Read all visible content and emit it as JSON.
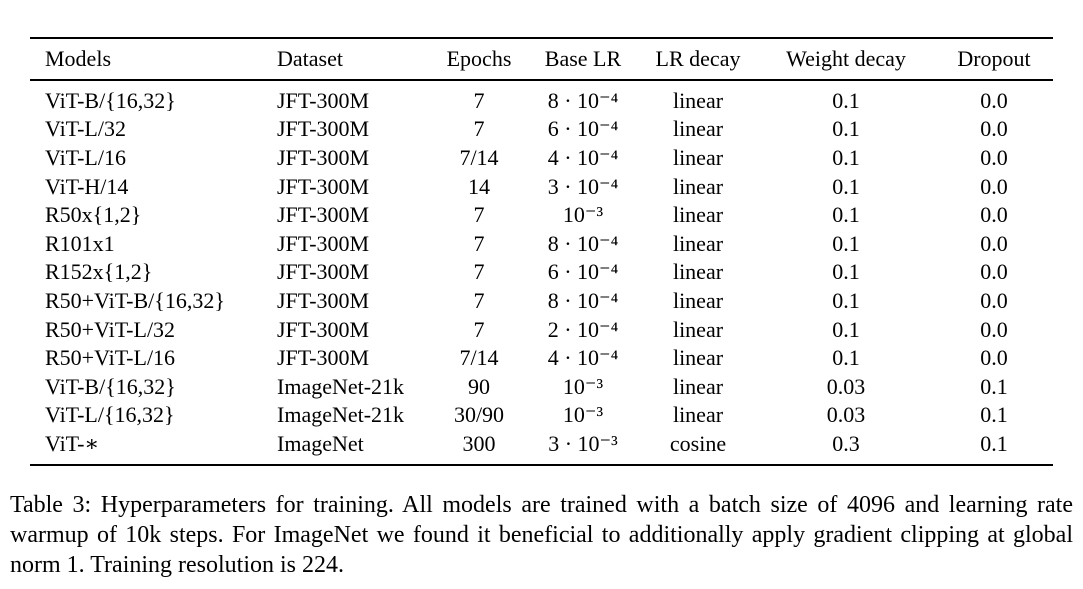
{
  "table": {
    "headers": [
      "Models",
      "Dataset",
      "Epochs",
      "Base LR",
      "LR decay",
      "Weight decay",
      "Dropout"
    ],
    "rows": [
      [
        "ViT-B/{16,32}",
        "JFT-300M",
        "7",
        "8 · 10⁻⁴",
        "linear",
        "0.1",
        "0.0"
      ],
      [
        "ViT-L/32",
        "JFT-300M",
        "7",
        "6 · 10⁻⁴",
        "linear",
        "0.1",
        "0.0"
      ],
      [
        "ViT-L/16",
        "JFT-300M",
        "7/14",
        "4 · 10⁻⁴",
        "linear",
        "0.1",
        "0.0"
      ],
      [
        "ViT-H/14",
        "JFT-300M",
        "14",
        "3 · 10⁻⁴",
        "linear",
        "0.1",
        "0.0"
      ],
      [
        "R50x{1,2}",
        "JFT-300M",
        "7",
        "10⁻³",
        "linear",
        "0.1",
        "0.0"
      ],
      [
        "R101x1",
        "JFT-300M",
        "7",
        "8 · 10⁻⁴",
        "linear",
        "0.1",
        "0.0"
      ],
      [
        "R152x{1,2}",
        "JFT-300M",
        "7",
        "6 · 10⁻⁴",
        "linear",
        "0.1",
        "0.0"
      ],
      [
        "R50+ViT-B/{16,32}",
        "JFT-300M",
        "7",
        "8 · 10⁻⁴",
        "linear",
        "0.1",
        "0.0"
      ],
      [
        "R50+ViT-L/32",
        "JFT-300M",
        "7",
        "2 · 10⁻⁴",
        "linear",
        "0.1",
        "0.0"
      ],
      [
        "R50+ViT-L/16",
        "JFT-300M",
        "7/14",
        "4 · 10⁻⁴",
        "linear",
        "0.1",
        "0.0"
      ],
      [
        "ViT-B/{16,32}",
        "ImageNet-21k",
        "90",
        "10⁻³",
        "linear",
        "0.03",
        "0.1"
      ],
      [
        "ViT-L/{16,32}",
        "ImageNet-21k",
        "30/90",
        "10⁻³",
        "linear",
        "0.03",
        "0.1"
      ],
      [
        "ViT-∗",
        "ImageNet",
        "300",
        "3 · 10⁻³",
        "cosine",
        "0.3",
        "0.1"
      ]
    ]
  },
  "caption": "Table 3: Hyperparameters for training. All models are trained with a batch size of 4096 and learning rate warmup of 10k steps. For ImageNet we found it beneficial to additionally apply gradient clipping at global norm 1. Training resolution is 224."
}
